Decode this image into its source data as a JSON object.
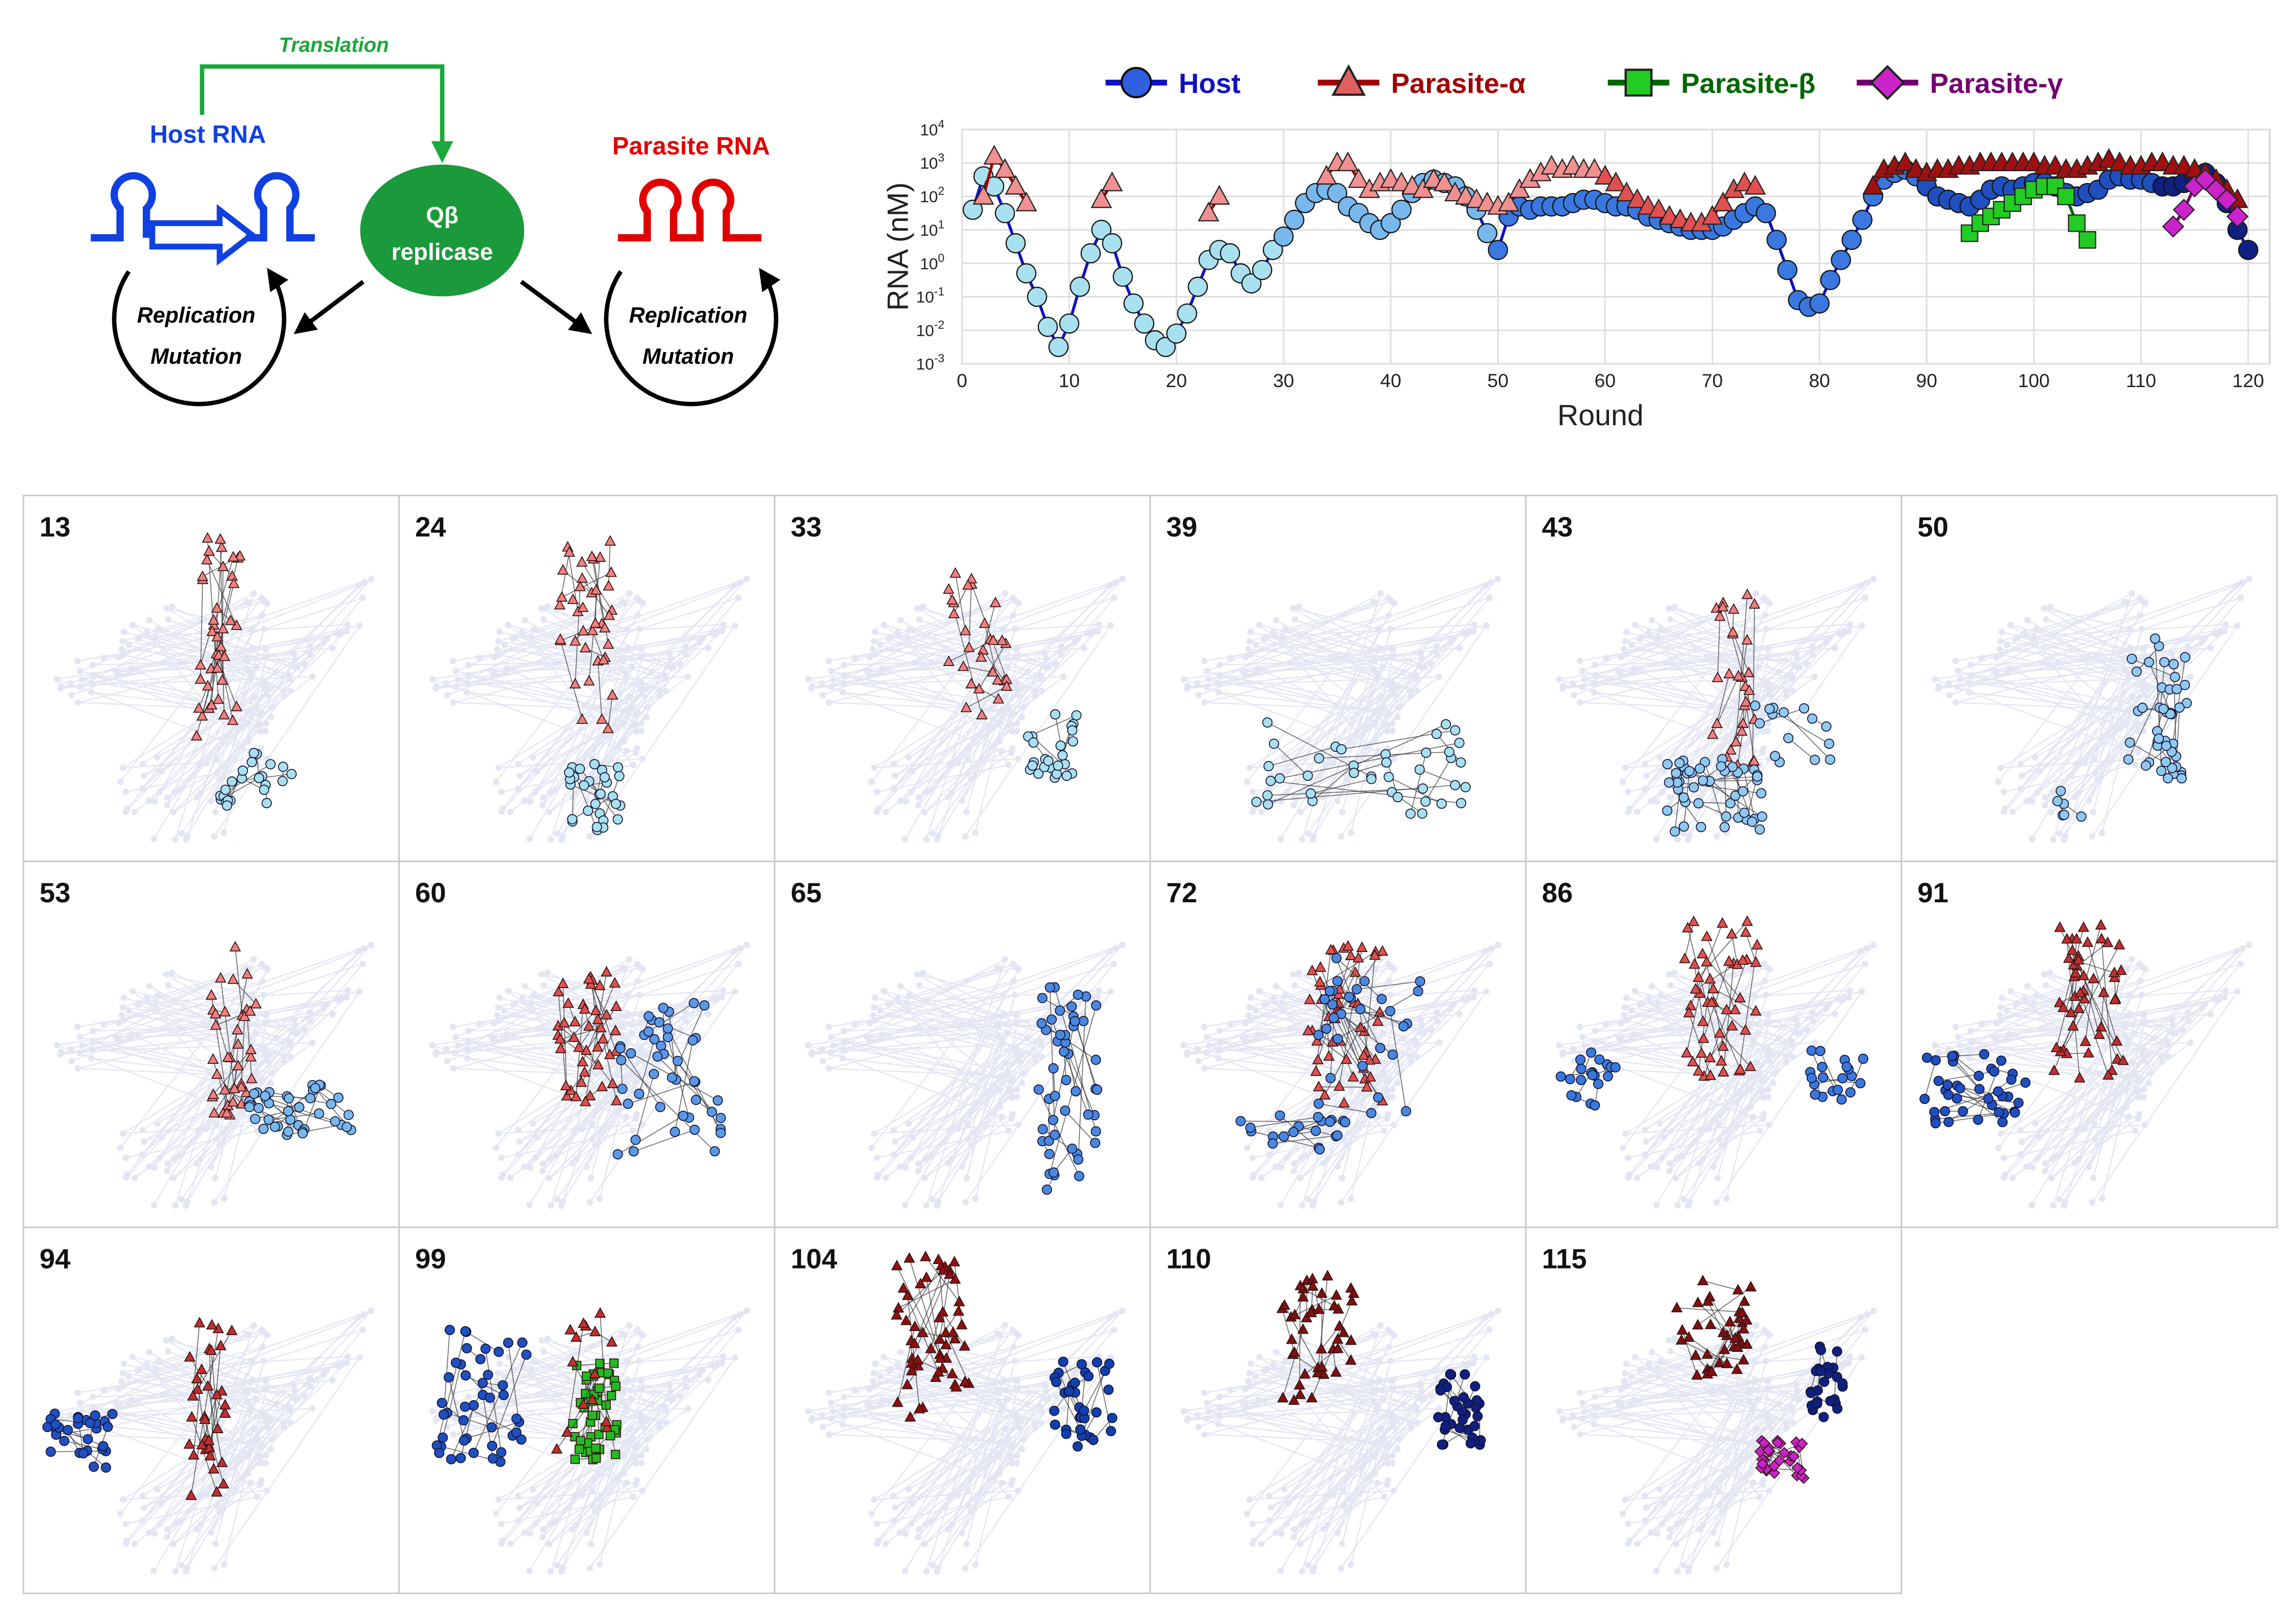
{
  "schematic": {
    "host_label": "Host RNA",
    "parasite_label": "Parasite RNA",
    "translation_label": "Translation",
    "replicase_line1": "Qβ",
    "replicase_line2": "replicase",
    "cycle_line1": "Replication",
    "cycle_line2": "Mutation",
    "colors": {
      "host": "#1040e0",
      "parasite": "#e00000",
      "replicase": "#1a9a3a",
      "translation": "#1aa83a"
    }
  },
  "chart_data": {
    "type": "line",
    "xlabel": "Round",
    "ylabel": "RNA (nM)",
    "xlim": [
      0,
      122
    ],
    "xticks": [
      0,
      10,
      20,
      30,
      40,
      50,
      60,
      70,
      80,
      90,
      100,
      110,
      120
    ],
    "yscale": "log",
    "ylim_exp": [
      -3,
      4
    ],
    "yticks": [
      {
        "exp": -3,
        "label": "10-3"
      },
      {
        "exp": -2,
        "label": "10-2"
      },
      {
        "exp": -1,
        "label": "10-1"
      },
      {
        "exp": 0,
        "label": "100"
      },
      {
        "exp": 1,
        "label": "101"
      },
      {
        "exp": 2,
        "label": "102"
      },
      {
        "exp": 3,
        "label": "103"
      },
      {
        "exp": 4,
        "label": "104"
      }
    ],
    "grid": true,
    "legend_position": "top",
    "series": [
      {
        "name": "Host",
        "marker": "circle",
        "color": "#3060e0",
        "stroke": "#1010c0",
        "log10_values": [
          [
            1,
            1.6
          ],
          [
            2,
            2.6
          ],
          [
            3,
            2.3
          ],
          [
            4,
            1.5
          ],
          [
            5,
            0.6
          ],
          [
            6,
            -0.3
          ],
          [
            7,
            -1.0
          ],
          [
            8,
            -1.9
          ],
          [
            9,
            -2.5
          ],
          [
            10,
            -1.8
          ],
          [
            11,
            -0.7
          ],
          [
            12,
            0.3
          ],
          [
            13,
            1.0
          ],
          [
            14,
            0.6
          ],
          [
            15,
            -0.4
          ],
          [
            16,
            -1.2
          ],
          [
            17,
            -1.8
          ],
          [
            18,
            -2.3
          ],
          [
            19,
            -2.5
          ],
          [
            20,
            -2.1
          ],
          [
            21,
            -1.5
          ],
          [
            22,
            -0.7
          ],
          [
            23,
            0.1
          ],
          [
            24,
            0.4
          ],
          [
            25,
            0.3
          ],
          [
            26,
            -0.3
          ],
          [
            27,
            -0.6
          ],
          [
            28,
            -0.2
          ],
          [
            29,
            0.4
          ],
          [
            30,
            0.8
          ],
          [
            31,
            1.3
          ],
          [
            32,
            1.8
          ],
          [
            33,
            2.1
          ],
          [
            34,
            2.2
          ],
          [
            35,
            2.1
          ],
          [
            36,
            1.7
          ],
          [
            37,
            1.5
          ],
          [
            38,
            1.2
          ],
          [
            39,
            1.0
          ],
          [
            40,
            1.2
          ],
          [
            41,
            1.6
          ],
          [
            42,
            2.1
          ],
          [
            43,
            2.4
          ],
          [
            44,
            2.5
          ],
          [
            45,
            2.4
          ],
          [
            46,
            2.3
          ],
          [
            47,
            2.0
          ],
          [
            48,
            1.6
          ],
          [
            49,
            0.9
          ],
          [
            50,
            0.4
          ],
          [
            51,
            1.4
          ],
          [
            52,
            1.7
          ],
          [
            53,
            1.6
          ],
          [
            54,
            1.7
          ],
          [
            55,
            1.7
          ],
          [
            56,
            1.7
          ],
          [
            57,
            1.8
          ],
          [
            58,
            1.9
          ],
          [
            59,
            1.9
          ],
          [
            60,
            1.8
          ],
          [
            61,
            1.7
          ],
          [
            62,
            1.7
          ],
          [
            63,
            1.6
          ],
          [
            64,
            1.4
          ],
          [
            65,
            1.3
          ],
          [
            66,
            1.2
          ],
          [
            67,
            1.1
          ],
          [
            68,
            1.0
          ],
          [
            69,
            1.0
          ],
          [
            70,
            1.0
          ],
          [
            71,
            1.1
          ],
          [
            72,
            1.3
          ],
          [
            73,
            1.5
          ],
          [
            74,
            1.7
          ],
          [
            75,
            1.5
          ],
          [
            76,
            0.7
          ],
          [
            77,
            -0.2
          ],
          [
            78,
            -1.1
          ],
          [
            79,
            -1.3
          ],
          [
            80,
            -1.2
          ],
          [
            81,
            -0.5
          ],
          [
            82,
            0.1
          ],
          [
            83,
            0.7
          ],
          [
            84,
            1.3
          ],
          [
            85,
            2.0
          ],
          [
            86,
            2.5
          ],
          [
            87,
            2.7
          ],
          [
            88,
            2.8
          ],
          [
            89,
            2.6
          ],
          [
            90,
            2.3
          ],
          [
            91,
            2.0
          ],
          [
            92,
            1.9
          ],
          [
            93,
            1.8
          ],
          [
            94,
            1.7
          ],
          [
            95,
            1.9
          ],
          [
            96,
            2.2
          ],
          [
            97,
            2.3
          ],
          [
            98,
            2.2
          ],
          [
            99,
            2.3
          ],
          [
            100,
            2.4
          ],
          [
            101,
            2.4
          ],
          [
            102,
            2.3
          ],
          [
            103,
            2.1
          ],
          [
            104,
            2.0
          ],
          [
            105,
            2.1
          ],
          [
            106,
            2.2
          ],
          [
            107,
            2.5
          ],
          [
            108,
            2.6
          ],
          [
            109,
            2.5
          ],
          [
            110,
            2.5
          ],
          [
            111,
            2.4
          ],
          [
            112,
            2.3
          ],
          [
            113,
            2.3
          ],
          [
            114,
            2.4
          ],
          [
            115,
            2.6
          ],
          [
            116,
            2.7
          ],
          [
            117,
            2.4
          ],
          [
            118,
            1.8
          ],
          [
            119,
            1.0
          ],
          [
            120,
            0.4
          ]
        ]
      },
      {
        "name": "Parasite-α",
        "marker": "triangle",
        "color": "#e06060",
        "stroke": "#a00000",
        "log10_values": [
          [
            2,
            2.0
          ],
          [
            3,
            3.2
          ],
          [
            4,
            2.8
          ],
          [
            5,
            2.3
          ],
          [
            6,
            1.8
          ],
          [
            13,
            1.9
          ],
          [
            14,
            2.4
          ],
          [
            23,
            1.5
          ],
          [
            24,
            2.0
          ],
          [
            34,
            2.6
          ],
          [
            35,
            3.0
          ],
          [
            36,
            3.0
          ],
          [
            37,
            2.5
          ],
          [
            38,
            2.2
          ],
          [
            39,
            2.4
          ],
          [
            40,
            2.5
          ],
          [
            41,
            2.4
          ],
          [
            42,
            2.3
          ],
          [
            43,
            2.2
          ],
          [
            44,
            2.5
          ],
          [
            45,
            2.4
          ],
          [
            46,
            2.1
          ],
          [
            47,
            2.0
          ],
          [
            48,
            1.9
          ],
          [
            49,
            1.8
          ],
          [
            50,
            1.7
          ],
          [
            51,
            1.8
          ],
          [
            52,
            2.2
          ],
          [
            53,
            2.5
          ],
          [
            54,
            2.7
          ],
          [
            55,
            2.9
          ],
          [
            56,
            2.8
          ],
          [
            57,
            2.9
          ],
          [
            58,
            2.8
          ],
          [
            59,
            2.8
          ],
          [
            60,
            2.6
          ],
          [
            61,
            2.4
          ],
          [
            62,
            2.1
          ],
          [
            63,
            1.9
          ],
          [
            64,
            1.7
          ],
          [
            65,
            1.6
          ],
          [
            66,
            1.4
          ],
          [
            67,
            1.3
          ],
          [
            68,
            1.2
          ],
          [
            69,
            1.2
          ],
          [
            70,
            1.4
          ],
          [
            71,
            1.8
          ],
          [
            72,
            2.2
          ],
          [
            73,
            2.4
          ],
          [
            74,
            2.3
          ],
          [
            85,
            2.3
          ],
          [
            86,
            2.8
          ],
          [
            87,
            2.9
          ],
          [
            88,
            3.0
          ],
          [
            89,
            2.8
          ],
          [
            90,
            2.7
          ],
          [
            91,
            2.8
          ],
          [
            92,
            2.8
          ],
          [
            93,
            2.9
          ],
          [
            94,
            2.9
          ],
          [
            95,
            3.0
          ],
          [
            96,
            3.0
          ],
          [
            97,
            3.0
          ],
          [
            98,
            3.0
          ],
          [
            99,
            3.0
          ],
          [
            100,
            3.0
          ],
          [
            101,
            2.9
          ],
          [
            102,
            2.9
          ],
          [
            103,
            2.8
          ],
          [
            104,
            2.8
          ],
          [
            105,
            2.9
          ],
          [
            106,
            3.0
          ],
          [
            107,
            3.1
          ],
          [
            108,
            3.0
          ],
          [
            109,
            2.9
          ],
          [
            110,
            2.9
          ],
          [
            111,
            3.0
          ],
          [
            112,
            3.0
          ],
          [
            113,
            2.9
          ],
          [
            114,
            2.9
          ],
          [
            115,
            2.8
          ],
          [
            116,
            2.7
          ],
          [
            117,
            2.5
          ],
          [
            118,
            2.2
          ],
          [
            119,
            1.9
          ]
        ]
      },
      {
        "name": "Parasite-β",
        "marker": "square",
        "color": "#22cc22",
        "stroke": "#006600",
        "log10_values": [
          [
            94,
            0.9
          ],
          [
            95,
            1.2
          ],
          [
            96,
            1.4
          ],
          [
            97,
            1.6
          ],
          [
            98,
            1.8
          ],
          [
            99,
            2.0
          ],
          [
            100,
            2.2
          ],
          [
            101,
            2.3
          ],
          [
            102,
            2.3
          ],
          [
            103,
            2.0
          ],
          [
            104,
            1.2
          ],
          [
            105,
            0.7
          ]
        ]
      },
      {
        "name": "Parasite-γ",
        "marker": "diamond",
        "color": "#cc22cc",
        "stroke": "#700070",
        "log10_values": [
          [
            113,
            1.1
          ],
          [
            114,
            1.6
          ],
          [
            115,
            2.3
          ],
          [
            116,
            2.5
          ],
          [
            117,
            2.2
          ],
          [
            118,
            1.9
          ],
          [
            119,
            1.4
          ]
        ]
      }
    ]
  },
  "panels": [
    {
      "label": "13"
    },
    {
      "label": "24"
    },
    {
      "label": "33"
    },
    {
      "label": "39"
    },
    {
      "label": "43"
    },
    {
      "label": "50"
    },
    {
      "label": "53"
    },
    {
      "label": "60"
    },
    {
      "label": "65"
    },
    {
      "label": "72"
    },
    {
      "label": "86"
    },
    {
      "label": "91"
    },
    {
      "label": "94"
    },
    {
      "label": "99"
    },
    {
      "label": "104"
    },
    {
      "label": "110"
    },
    {
      "label": "115"
    }
  ]
}
